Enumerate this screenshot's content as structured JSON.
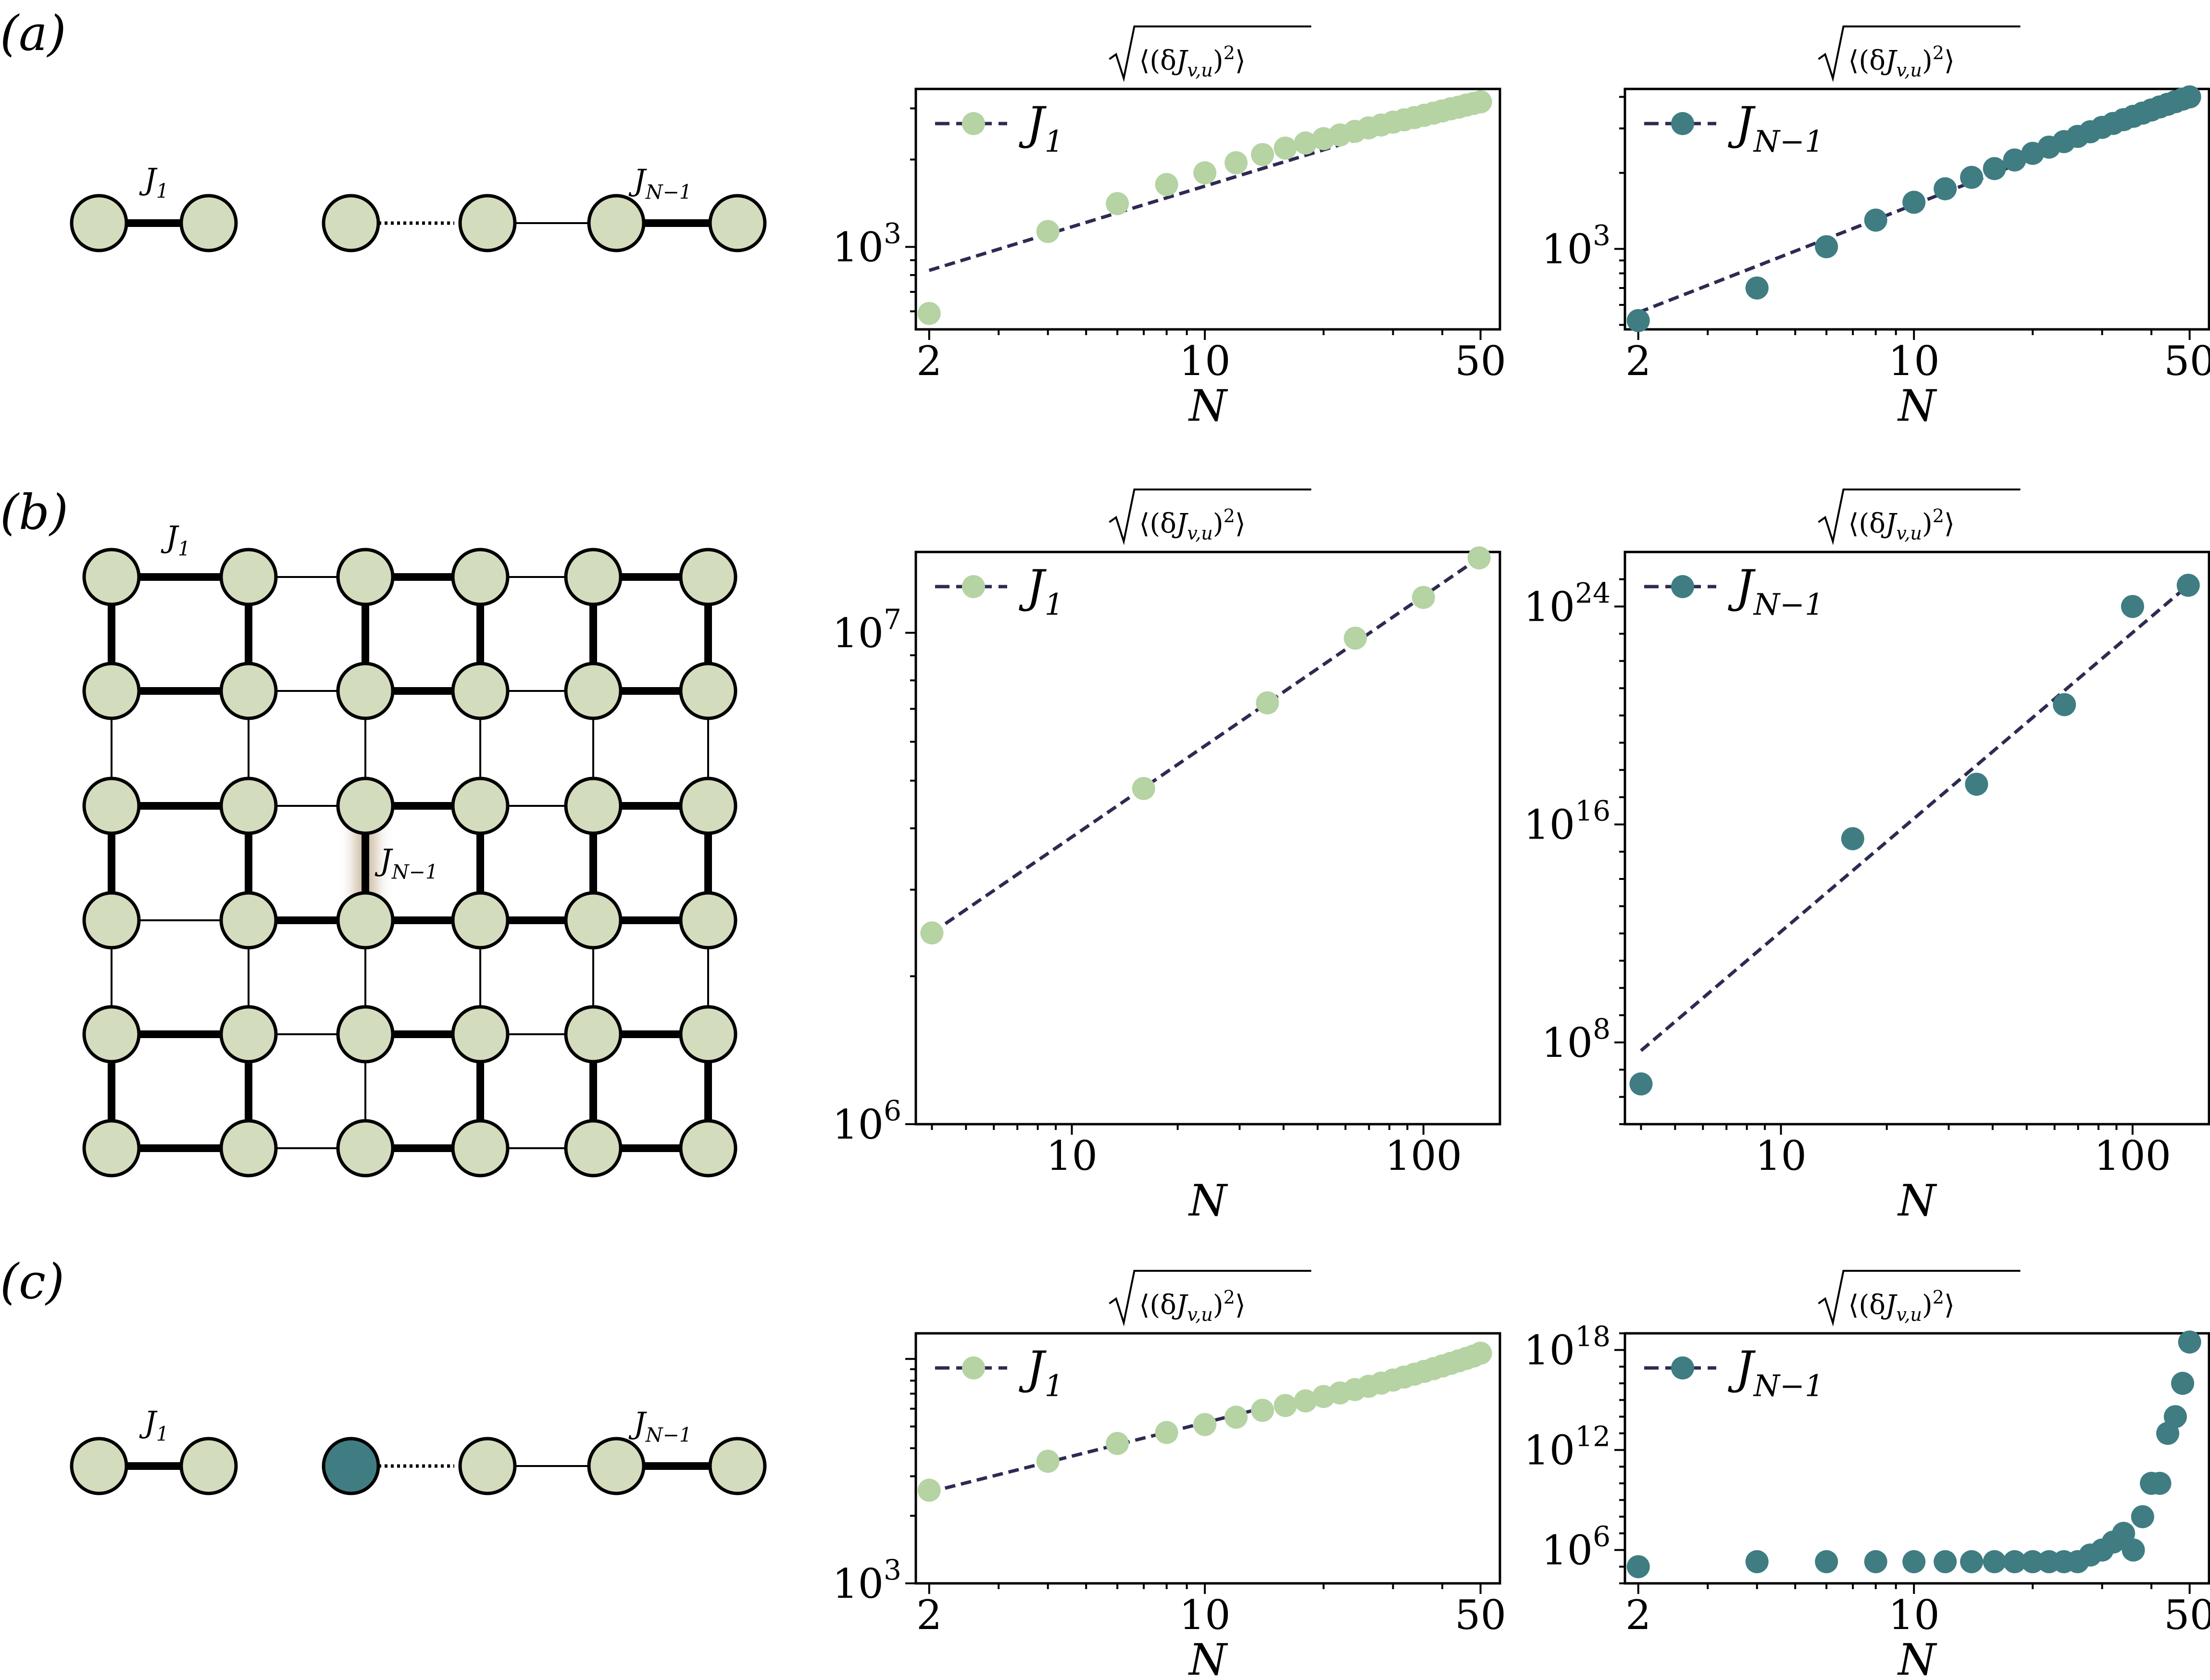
{
  "panel_labels": [
    "(a)",
    "(b)",
    "(c)"
  ],
  "colors": {
    "light_green": "#b5d3a3",
    "teal": "#3f7d82",
    "dark_line": "#2e2a52",
    "node_fill": "#d4dcbe",
    "node_stroke": "#000000",
    "highlight": "#bfa98a"
  },
  "diagram": {
    "bond_first": "J_1",
    "bond_last": "J_{N-1}"
  },
  "ylabel_text": "√⟨(δJ_{v,u})²⟩",
  "chart_data": [
    {
      "id": "a-J1",
      "type": "scatter",
      "title": "√⟨(δJ_{v,u})²⟩",
      "xlabel": "N",
      "xscale": "log",
      "yscale": "log",
      "xlim": [
        1.85,
        56
      ],
      "ylim": [
        520,
        3500
      ],
      "xticks": [
        2,
        10,
        50
      ],
      "yticks": [
        {
          "value": 1000,
          "label": "10^3"
        }
      ],
      "legend": {
        "label": "J_1",
        "placement": "top-left"
      },
      "series": [
        {
          "name": "J_1",
          "x": [
            2,
            4,
            6,
            8,
            10,
            12,
            14,
            16,
            18,
            20,
            22,
            24,
            26,
            28,
            30,
            32,
            34,
            36,
            38,
            40,
            42,
            44,
            46,
            48,
            50
          ],
          "y": [
            590,
            1130,
            1410,
            1640,
            1800,
            1950,
            2080,
            2190,
            2280,
            2360,
            2430,
            2500,
            2570,
            2630,
            2690,
            2740,
            2790,
            2840,
            2890,
            2940,
            2990,
            3030,
            3080,
            3120,
            3160
          ],
          "fit_line": {
            "x": [
              2,
              50
            ],
            "y": [
              830,
              3160
            ]
          }
        }
      ]
    },
    {
      "id": "a-JN-1",
      "type": "scatter",
      "title": "√⟨(δJ_{v,u})²⟩",
      "xlabel": "N",
      "xscale": "log",
      "yscale": "log",
      "xlim": [
        1.85,
        56
      ],
      "ylim": [
        480,
        4300
      ],
      "xticks": [
        2,
        10,
        50
      ],
      "yticks": [
        {
          "value": 1000,
          "label": "10^3"
        }
      ],
      "legend": {
        "label": "J_{N-1}",
        "placement": "top-left"
      },
      "series": [
        {
          "name": "J_{N-1}",
          "x": [
            2,
            4,
            6,
            8,
            10,
            12,
            14,
            16,
            18,
            20,
            22,
            24,
            26,
            28,
            30,
            32,
            34,
            36,
            38,
            40,
            42,
            44,
            46,
            48,
            50
          ],
          "y": [
            520,
            700,
            1020,
            1300,
            1530,
            1730,
            1920,
            2080,
            2250,
            2390,
            2530,
            2660,
            2790,
            2910,
            3030,
            3140,
            3250,
            3350,
            3450,
            3550,
            3650,
            3740,
            3830,
            3920,
            4000
          ],
          "fit_line": {
            "x": [
              2,
              50
            ],
            "y": [
              560,
              4000
            ]
          }
        }
      ]
    },
    {
      "id": "b-J1",
      "type": "scatter",
      "title": "√⟨(δJ_{v,u})²⟩",
      "xlabel": "N",
      "xscale": "log",
      "yscale": "log",
      "xlim": [
        3.6,
        165
      ],
      "ylim": [
        1000000,
        14600000
      ],
      "xticks": [
        10,
        100
      ],
      "yticks": [
        {
          "value": 1000000,
          "label": "10^6"
        },
        {
          "value": 10000000,
          "label": "10^7"
        }
      ],
      "legend": {
        "label": "J_1",
        "placement": "top-left"
      },
      "series": [
        {
          "name": "J_1",
          "x": [
            4,
            16,
            36,
            64,
            100,
            144
          ],
          "y": [
            2450000,
            4820000,
            7200000,
            9750000,
            11800000,
            14200000
          ],
          "fit_line": {
            "x": [
              4,
              144
            ],
            "y": [
              2450000,
              14200000
            ]
          }
        }
      ]
    },
    {
      "id": "b-JN-1",
      "type": "scatter",
      "title": "√⟨(δJ_{v,u})²⟩",
      "xlabel": "N",
      "xscale": "log",
      "yscale": "log",
      "xlim": [
        3.6,
        165
      ],
      "ylim": [
        100000.0,
        1e+26
      ],
      "xticks": [
        10,
        100
      ],
      "yticks": [
        {
          "value": 100000000.0,
          "label": "10^8"
        },
        {
          "value": 1e+16,
          "label": "10^16"
        },
        {
          "value": 1e+24,
          "label": "10^24"
        }
      ],
      "legend": {
        "label": "J_{N-1}",
        "placement": "top-left"
      },
      "series": [
        {
          "name": "J_{N-1}",
          "x": [
            4,
            16,
            36,
            64,
            100,
            144
          ],
          "y": [
            3000000.0,
            3000000000000000.0,
            3e+17,
            2.5e+20,
            1e+24,
            6e+24
          ],
          "fit_line": {
            "x": [
              4,
              144
            ],
            "y": [
              50000000.0,
              6e+24
            ]
          }
        }
      ]
    },
    {
      "id": "c-J1",
      "type": "scatter",
      "title": "√⟨(δJ_{v,u})²⟩",
      "xlabel": "N",
      "xscale": "log",
      "yscale": "log",
      "xlim": [
        1.85,
        56
      ],
      "ylim": [
        1000,
        13000
      ],
      "xticks": [
        2,
        10,
        50
      ],
      "yticks": [
        {
          "value": 1000,
          "label": "10^3"
        }
      ],
      "legend": {
        "label": "J_1",
        "placement": "top-left"
      },
      "series": [
        {
          "name": "J_1",
          "x": [
            2,
            4,
            6,
            8,
            10,
            12,
            14,
            16,
            18,
            20,
            22,
            24,
            26,
            28,
            30,
            32,
            34,
            36,
            38,
            40,
            42,
            44,
            46,
            48,
            50
          ],
          "y": [
            2600,
            3500,
            4200,
            4700,
            5100,
            5500,
            5900,
            6200,
            6500,
            6800,
            7050,
            7300,
            7550,
            7800,
            8050,
            8300,
            8550,
            8800,
            9050,
            9300,
            9550,
            9800,
            10050,
            10300,
            10600
          ],
          "fit_line": {
            "x": [
              2,
              50
            ],
            "y": [
              2550,
              10600
            ]
          }
        }
      ]
    },
    {
      "id": "c-JN-1",
      "type": "scatter",
      "title": "√⟨(δJ_{v,u})²⟩",
      "xlabel": "N",
      "xscale": "log",
      "yscale": "log",
      "xlim": [
        1.85,
        56
      ],
      "ylim": [
        10000.0,
        1e+19
      ],
      "xticks": [
        2,
        10,
        50
      ],
      "yticks": [
        {
          "value": 1000000.0,
          "label": "10^6"
        },
        {
          "value": 1000000000000.0,
          "label": "10^12"
        },
        {
          "value": 1e+18,
          "label": "10^18"
        }
      ],
      "legend": {
        "label": "J_{N-1}",
        "placement": "top-left"
      },
      "series": [
        {
          "name": "J_{N-1}",
          "x": [
            2,
            4,
            6,
            8,
            10,
            12,
            14,
            16,
            18,
            20,
            22,
            24,
            26,
            28,
            30,
            32,
            34,
            36,
            38,
            40,
            42,
            44,
            46,
            48,
            50
          ],
          "y": [
            100000.0,
            200000.0,
            200000.0,
            200000.0,
            200000.0,
            200000.0,
            200000.0,
            200000.0,
            200000.0,
            200000.0,
            200000.0,
            200000.0,
            200000.0,
            500000.0,
            1000000.0,
            3000000.0,
            10000000.0,
            1000000.0,
            100000000.0,
            10000000000.0,
            10000000000.0,
            10000000000000.0,
            100000000000000.0,
            1e+16,
            3e+18
          ]
        }
      ]
    }
  ]
}
